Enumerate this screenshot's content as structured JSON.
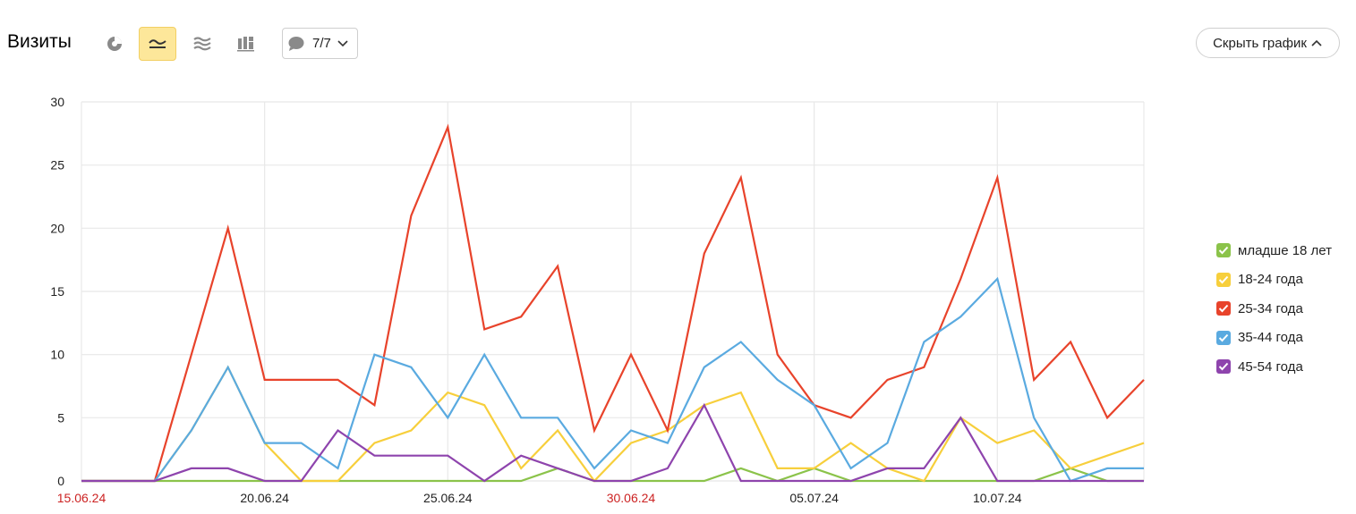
{
  "header": {
    "title": "Визиты",
    "segments_label": "7/7",
    "hide_chart_label": "Скрыть график"
  },
  "toolbar": {
    "buttons": [
      {
        "name": "pie-chart-icon",
        "active": false
      },
      {
        "name": "line-chart-icon",
        "active": true
      },
      {
        "name": "area-chart-icon",
        "active": false
      },
      {
        "name": "column-chart-icon",
        "active": false
      }
    ]
  },
  "colors": {
    "grid": "#e8e8e8",
    "axis_text": "#222222",
    "weekend_tick": "#cc2222",
    "active_btn": "#fde79a"
  },
  "chart_data": {
    "type": "line",
    "x": [
      "15.06.24",
      "16.06.24",
      "17.06.24",
      "18.06.24",
      "19.06.24",
      "20.06.24",
      "21.06.24",
      "22.06.24",
      "23.06.24",
      "24.06.24",
      "25.06.24",
      "26.06.24",
      "27.06.24",
      "28.06.24",
      "29.06.24",
      "30.06.24",
      "01.07.24",
      "02.07.24",
      "03.07.24",
      "04.07.24",
      "05.07.24",
      "06.07.24",
      "07.07.24",
      "08.07.24",
      "09.07.24",
      "10.07.24",
      "11.07.24",
      "12.07.24",
      "13.07.24",
      "14.07.24"
    ],
    "x_tick_labels": [
      {
        "label": "15.06.24",
        "weekend": true
      },
      {
        "label": "20.06.24",
        "weekend": false
      },
      {
        "label": "25.06.24",
        "weekend": false
      },
      {
        "label": "30.06.24",
        "weekend": true
      },
      {
        "label": "05.07.24",
        "weekend": false
      },
      {
        "label": "10.07.24",
        "weekend": false
      }
    ],
    "y_ticks": [
      "0",
      "5",
      "10",
      "15",
      "20",
      "25",
      "30"
    ],
    "ylim": [
      0,
      30
    ],
    "grid": true,
    "legend_position": "right",
    "series": [
      {
        "name": "младше 18 лет",
        "color": "#8bc34a",
        "values": [
          0,
          0,
          0,
          0,
          0,
          0,
          0,
          0,
          0,
          0,
          0,
          0,
          0,
          1,
          0,
          0,
          0,
          0,
          1,
          0,
          1,
          0,
          0,
          0,
          0,
          0,
          0,
          1,
          0,
          0
        ]
      },
      {
        "name": "18-24 года",
        "color": "#f7cf3c",
        "values": [
          0,
          0,
          0,
          4,
          9,
          3,
          0,
          0,
          3,
          4,
          7,
          6,
          1,
          4,
          0,
          3,
          4,
          6,
          7,
          1,
          1,
          3,
          1,
          0,
          5,
          3,
          4,
          1,
          2,
          3
        ]
      },
      {
        "name": "25-34 года",
        "color": "#e8432b",
        "values": [
          0,
          0,
          0,
          10,
          20,
          8,
          8,
          8,
          6,
          21,
          28,
          12,
          13,
          17,
          4,
          10,
          4,
          18,
          24,
          10,
          6,
          5,
          8,
          9,
          16,
          24,
          8,
          11,
          5,
          8
        ]
      },
      {
        "name": "35-44 года",
        "color": "#5aaae0",
        "values": [
          0,
          0,
          0,
          4,
          9,
          3,
          3,
          1,
          10,
          9,
          5,
          10,
          5,
          5,
          1,
          4,
          3,
          9,
          11,
          8,
          6,
          1,
          3,
          11,
          13,
          16,
          5,
          0,
          1,
          1
        ]
      },
      {
        "name": "45-54 года",
        "color": "#8e44ad",
        "values": [
          0,
          0,
          0,
          1,
          1,
          0,
          0,
          4,
          2,
          2,
          2,
          0,
          2,
          1,
          0,
          0,
          1,
          6,
          0,
          0,
          0,
          0,
          1,
          1,
          5,
          0,
          0,
          0,
          0,
          0
        ]
      }
    ]
  }
}
